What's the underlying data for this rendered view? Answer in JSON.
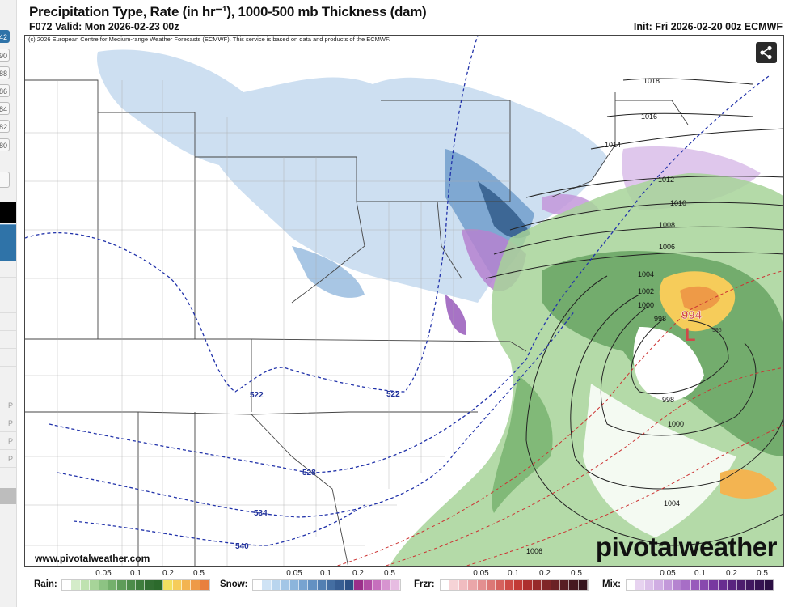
{
  "sidebar": {
    "hour_buttons": [
      "42",
      "90",
      "88",
      "86",
      "84",
      "82",
      "80"
    ],
    "list_markers": [
      "P",
      "P",
      "P",
      "P"
    ]
  },
  "header": {
    "title": "Precipitation Type, Rate (in hr⁻¹), 1000-500 mb Thickness (dam)",
    "valid": "F072 Valid: Mon 2026-02-23 00z",
    "init": "Init: Fri 2026-02-20 00z ECMWF"
  },
  "map": {
    "copyright": "(c) 2026 European Centre for Medium-range Weather Forecasts (ECMWF). This service is based on data and products of the ECMWF.",
    "share_icon": "share-icon",
    "site": "www.pivotalweather.com",
    "logo": "pivotalweather",
    "low_center": {
      "pressure": "994",
      "symbol": "L",
      "inner": "996"
    },
    "isobar_labels": [
      "1018",
      "1016",
      "1014",
      "1012",
      "1010",
      "1008",
      "1006",
      "1004",
      "1002",
      "1000",
      "998",
      "998",
      "1000",
      "1004",
      "1006"
    ],
    "thickness_labels": [
      "522",
      "522",
      "528",
      "534",
      "540"
    ],
    "colors": {
      "isobar": "#222222",
      "thickness_cold": "#2233aa",
      "thickness_warm": "#cc3333"
    }
  },
  "legend": [
    {
      "name": "Rain:",
      "ticks": [
        "0.05",
        "0.1",
        "0.2",
        "0.5"
      ],
      "colors": [
        "#ffffff",
        "#d4ecc9",
        "#bfe2b0",
        "#a7d499",
        "#8dc383",
        "#74b06c",
        "#5e9c59",
        "#4d8c4a",
        "#3f7d3d",
        "#326e32",
        "#2c6a2c",
        "#f2e060",
        "#f6cc5a",
        "#f3b451",
        "#ee9a47",
        "#e8803e"
      ]
    },
    {
      "name": "Snow:",
      "ticks": [
        "0.05",
        "0.1",
        "0.2",
        "0.5"
      ],
      "colors": [
        "#ffffff",
        "#cfe3f5",
        "#b9d5ee",
        "#a3c6e6",
        "#8cb5dc",
        "#77a3d0",
        "#6391c2",
        "#527fb2",
        "#446ea2",
        "#375e93",
        "#2c5085",
        "#9b2f8a",
        "#b24ea5",
        "#c66fbd",
        "#d794d0",
        "#e7bce2"
      ]
    },
    {
      "name": "Frzr:",
      "ticks": [
        "0.05",
        "0.1",
        "0.2",
        "0.5"
      ],
      "colors": [
        "#ffffff",
        "#f6d3d6",
        "#f0bcc0",
        "#eaa6a9",
        "#e38f90",
        "#dc7876",
        "#d5625e",
        "#cd4b46",
        "#c23a35",
        "#ad2f2d",
        "#972a2a",
        "#802527",
        "#6b2125",
        "#581d23",
        "#461820",
        "#36141d"
      ]
    },
    {
      "name": "Mix:",
      "ticks": [
        "0.05",
        "0.1",
        "0.2",
        "0.5"
      ],
      "colors": [
        "#ffffff",
        "#e7d3f0",
        "#dcc1ea",
        "#d0ade3",
        "#c398da",
        "#b583d0",
        "#a76ec6",
        "#985abb",
        "#8848ae",
        "#7838a0",
        "#682c90",
        "#5a237f",
        "#4d1d6e",
        "#411860",
        "#361352",
        "#2c0f44"
      ]
    }
  ]
}
